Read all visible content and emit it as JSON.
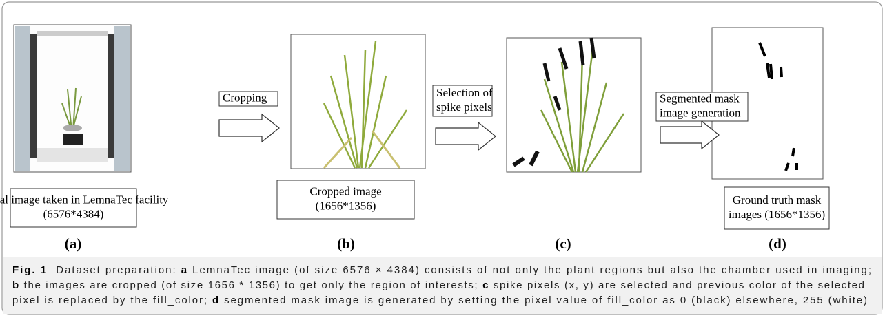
{
  "panels": [
    {
      "letter": "(a)",
      "description": [
        "Visual image taken in LemnaTec facility",
        "(6576*4384)"
      ]
    },
    {
      "letter": "(b)",
      "description": [
        "Cropped image",
        "(1656*1356)"
      ]
    },
    {
      "letter": "(c)"
    },
    {
      "letter": "(d)",
      "description": [
        "Ground truth mask",
        "images (1656*1356)"
      ]
    }
  ],
  "steps": [
    {
      "label": [
        "Cropping"
      ]
    },
    {
      "label": [
        "Selection of",
        "spike pixels"
      ]
    },
    {
      "label": [
        "Segmented mask",
        "image generation"
      ]
    }
  ],
  "caption": {
    "lines": [
      [
        {
          "text": "Fig. 1",
          "bold": true
        },
        {
          "text": "  Dataset preparation: ",
          "bold": false
        },
        {
          "text": "a",
          "bold": true
        },
        {
          "text": " LemnaTec image (of size 6576 × 4384) consists of not only the plant regions but also the chamber used in imaging;",
          "bold": false
        }
      ],
      [
        {
          "text": "b",
          "bold": true
        },
        {
          "text": " the images are cropped (of size 1656 * 1356) to get only the region of interests; ",
          "bold": false
        },
        {
          "text": "c",
          "bold": true
        },
        {
          "text": " spike pixels (x, y) are selected and previous color of the selected",
          "bold": false
        }
      ],
      [
        {
          "text": "pixel is replaced by the fill_color; ",
          "bold": false
        },
        {
          "text": "d",
          "bold": true
        },
        {
          "text": " segmented mask image is generated by setting the pixel value of fill_color as 0 (black) elsewhere, 255 (white)",
          "bold": false
        }
      ]
    ]
  }
}
